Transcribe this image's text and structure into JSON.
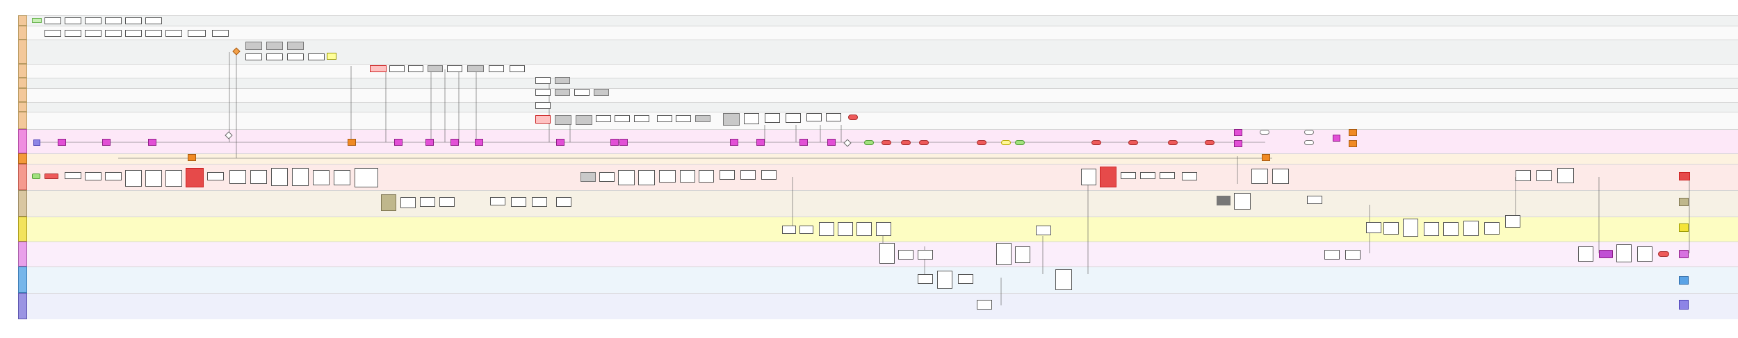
{
  "colors": {
    "gateway": "#ffffff",
    "decision_orange": "#f2a14a",
    "event_pink": "#e24fd6",
    "event_orange": "#f08a24",
    "end_red": "#ee5a5a",
    "accent_purple": "#8d84e6"
  },
  "lanes": [
    {
      "label": ""
    },
    {
      "label": ""
    },
    {
      "label": ""
    },
    {
      "label": ""
    },
    {
      "label": ""
    },
    {
      "label": ""
    },
    {
      "label": ""
    },
    {
      "label": ""
    },
    {
      "label": ""
    },
    {
      "label": ""
    },
    {
      "label": ""
    },
    {
      "label": ""
    },
    {
      "label": ""
    },
    {
      "label": ""
    },
    {
      "label": ""
    },
    {
      "label": ""
    }
  ]
}
